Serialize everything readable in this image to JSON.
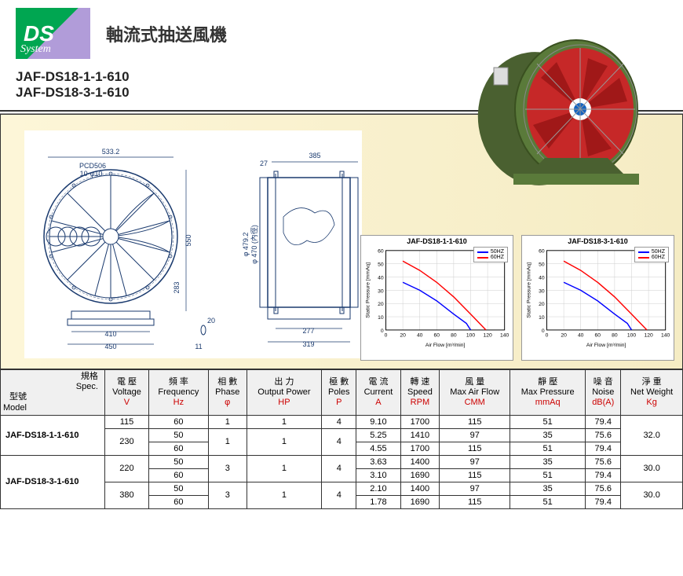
{
  "logo": {
    "main": "DS",
    "sub": "System"
  },
  "title": "軸流式抽送風機",
  "model_names": [
    "JAF-DS18-1-1-610",
    "JAF-DS18-3-1-610"
  ],
  "diagram": {
    "dims": {
      "outer_dia": "533.2",
      "pcd": "PCD506",
      "holes": "10-φ10",
      "height": "550",
      "base_h": "283",
      "base_w": "410",
      "base_w2": "450",
      "slot": "11",
      "slot_h": "20",
      "side_gap": "27",
      "length": "385",
      "inner_w": "277",
      "inner_w2": "319",
      "dia1": "φ 479.2",
      "dia2": "φ 470 (內徑)"
    }
  },
  "charts": [
    {
      "title": "JAF-DS18-1-1-610",
      "xlabel": "Air Flow [m³/min]",
      "ylabel": "Static Pressure [mmAq]",
      "xlim": [
        0,
        140
      ],
      "ylim": [
        0,
        60
      ],
      "xtick": 20,
      "ytick": 10,
      "series": [
        {
          "name": "50HZ",
          "color": "#0000ff",
          "points": [
            [
              20,
              36
            ],
            [
              40,
              30
            ],
            [
              60,
              22
            ],
            [
              80,
              12
            ],
            [
              95,
              5
            ],
            [
              100,
              0
            ]
          ]
        },
        {
          "name": "60HZ",
          "color": "#ff0000",
          "points": [
            [
              20,
              52
            ],
            [
              40,
              45
            ],
            [
              60,
              36
            ],
            [
              80,
              25
            ],
            [
              100,
              12
            ],
            [
              115,
              2
            ],
            [
              118,
              0
            ]
          ]
        }
      ]
    },
    {
      "title": "JAF-DS18-3-1-610",
      "xlabel": "Air Flow [m³/min]",
      "ylabel": "Static Pressure [mmAq]",
      "xlim": [
        0,
        140
      ],
      "ylim": [
        0,
        60
      ],
      "xtick": 20,
      "ytick": 10,
      "series": [
        {
          "name": "50HZ",
          "color": "#0000ff",
          "points": [
            [
              20,
              36
            ],
            [
              40,
              30
            ],
            [
              60,
              22
            ],
            [
              80,
              12
            ],
            [
              95,
              5
            ],
            [
              100,
              0
            ]
          ]
        },
        {
          "name": "60HZ",
          "color": "#ff0000",
          "points": [
            [
              20,
              52
            ],
            [
              40,
              45
            ],
            [
              60,
              36
            ],
            [
              80,
              25
            ],
            [
              100,
              12
            ],
            [
              115,
              2
            ],
            [
              118,
              0
            ]
          ]
        }
      ]
    }
  ],
  "table": {
    "header_diag": {
      "spec": "規格",
      "spec_en": "Spec.",
      "model": "型號",
      "model_en": "Model"
    },
    "columns": [
      {
        "cn": "電 壓",
        "en": "Voltage",
        "unit": "V",
        "color": "#cc0000"
      },
      {
        "cn": "頻 率",
        "en": "Frequency",
        "unit": "Hz",
        "color": "#cc0000"
      },
      {
        "cn": "相 數",
        "en": "Phase",
        "unit": "φ",
        "color": "#cc0000"
      },
      {
        "cn": "出 力",
        "en": "Output Power",
        "unit": "HP",
        "color": "#cc0000"
      },
      {
        "cn": "極 數",
        "en": "Poles",
        "unit": "P",
        "color": "#cc0000"
      },
      {
        "cn": "電 流",
        "en": "Current",
        "unit": "A",
        "color": "#cc0000"
      },
      {
        "cn": "轉 速",
        "en": "Speed",
        "unit": "RPM",
        "color": "#cc0000"
      },
      {
        "cn": "風 量",
        "en": "Max Air Flow",
        "unit": "CMM",
        "color": "#cc0000"
      },
      {
        "cn": "靜 壓",
        "en": "Max Pressure",
        "unit": "mmAq",
        "color": "#cc0000"
      },
      {
        "cn": "噪 音",
        "en": "Noise",
        "unit": "dB(A)",
        "color": "#cc0000"
      },
      {
        "cn": "淨 重",
        "en": "Net Weight",
        "unit": "Kg",
        "color": "#cc0000"
      }
    ],
    "rows": [
      {
        "model": "JAF-DS18-1-1-610",
        "model_rs": 3,
        "v": "115",
        "v_rs": 1,
        "hz": "60",
        "hz_rs": 1,
        "ph": "1",
        "ph_rs": 1,
        "hp": "1",
        "hp_rs": 1,
        "p": "4",
        "p_rs": 1,
        "a": "9.10",
        "rpm": "1700",
        "cmm": "115",
        "mmaq": "51",
        "db": "79.4",
        "kg": "32.0",
        "kg_rs": 3
      },
      {
        "v": "230",
        "v_rs": 2,
        "hz": "50",
        "ph": "1",
        "ph_rs": 2,
        "hp": "1",
        "hp_rs": 2,
        "p": "4",
        "p_rs": 2,
        "a": "5.25",
        "rpm": "1410",
        "cmm": "97",
        "mmaq": "35",
        "db": "75.6"
      },
      {
        "hz": "60",
        "a": "4.55",
        "rpm": "1700",
        "cmm": "115",
        "mmaq": "51",
        "db": "79.4"
      },
      {
        "model": "JAF-DS18-3-1-610",
        "model_rs": 4,
        "v": "220",
        "v_rs": 2,
        "hz": "50",
        "ph": "3",
        "ph_rs": 2,
        "hp": "1",
        "hp_rs": 2,
        "p": "4",
        "p_rs": 2,
        "a": "3.63",
        "rpm": "1400",
        "cmm": "97",
        "mmaq": "35",
        "db": "75.6",
        "kg": "30.0",
        "kg_rs": 2
      },
      {
        "hz": "60",
        "a": "3.10",
        "rpm": "1690",
        "cmm": "115",
        "mmaq": "51",
        "db": "79.4"
      },
      {
        "v": "380",
        "v_rs": 2,
        "hz": "50",
        "ph": "3",
        "ph_rs": 2,
        "hp": "1",
        "hp_rs": 2,
        "p": "4",
        "p_rs": 2,
        "a": "2.10",
        "rpm": "1400",
        "cmm": "97",
        "mmaq": "35",
        "db": "75.6",
        "kg": "30.0",
        "kg_rs": 2
      },
      {
        "hz": "60",
        "a": "1.78",
        "rpm": "1690",
        "cmm": "115",
        "mmaq": "51",
        "db": "79.4"
      }
    ]
  },
  "colors": {
    "green": "#5a7a3a",
    "red_fan": "#c62828",
    "grid": "#cccccc"
  }
}
